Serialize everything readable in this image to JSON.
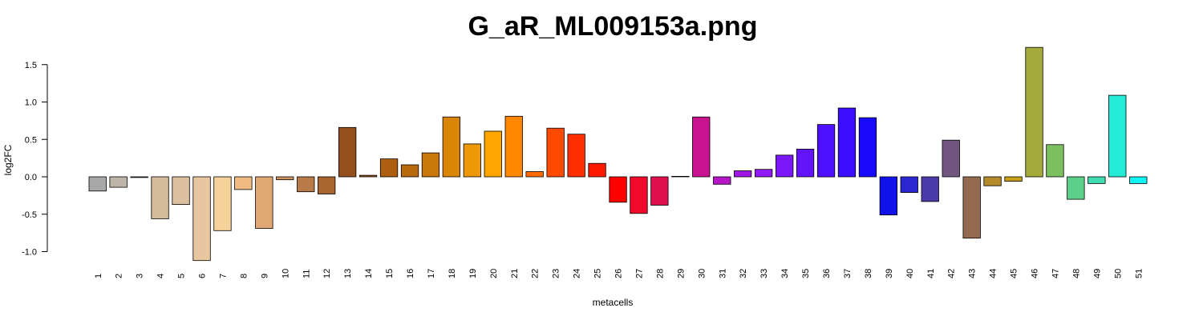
{
  "chart_data": {
    "type": "bar",
    "title": "G_aR_ML009153a.png",
    "xlabel": "metacells",
    "ylabel": "log2FC",
    "ylim": [
      -1.12,
      1.72
    ],
    "yticks": [
      -1.0,
      -0.5,
      0.0,
      0.5,
      1.0,
      1.5
    ],
    "ytick_labels": [
      "-1.0",
      "-0.5",
      "0.0",
      "0.5",
      "1.0",
      "1.5"
    ],
    "grid": false,
    "categories": [
      "1",
      "2",
      "3",
      "4",
      "5",
      "6",
      "7",
      "8",
      "9",
      "10",
      "11",
      "12",
      "13",
      "14",
      "15",
      "16",
      "17",
      "18",
      "19",
      "20",
      "21",
      "22",
      "23",
      "24",
      "25",
      "26",
      "27",
      "28",
      "29",
      "30",
      "31",
      "32",
      "33",
      "34",
      "35",
      "36",
      "37",
      "38",
      "39",
      "40",
      "41",
      "42",
      "43",
      "44",
      "45",
      "46",
      "47",
      "48",
      "49",
      "50",
      "51"
    ],
    "values": [
      -0.19,
      -0.14,
      -0.01,
      -0.56,
      -0.37,
      -1.12,
      -0.72,
      -0.17,
      -0.69,
      -0.04,
      -0.2,
      -0.23,
      0.66,
      0.02,
      0.24,
      0.16,
      0.32,
      0.8,
      0.44,
      0.61,
      0.81,
      0.07,
      0.65,
      0.57,
      0.18,
      -0.34,
      -0.49,
      -0.38,
      0.0,
      0.8,
      -0.1,
      0.08,
      0.1,
      0.29,
      0.37,
      0.7,
      0.92,
      0.79,
      -0.51,
      -0.21,
      -0.33,
      0.49,
      -0.82,
      -0.12,
      -0.06,
      1.73,
      0.43,
      -0.3,
      -0.09,
      1.09,
      -0.09
    ],
    "colors": [
      "#a8a8a8",
      "#bdb5a8",
      "#cfc3ad",
      "#d4bb9b",
      "#dcc0a0",
      "#e8c7a0",
      "#f6d29b",
      "#f0bc84",
      "#e0a872",
      "#cf9360",
      "#b87a48",
      "#a8652d",
      "#944f1c",
      "#9a5618",
      "#ad5e0e",
      "#b8690c",
      "#c87808",
      "#d98606",
      "#ee9805",
      "#ffa500",
      "#ff8800",
      "#ff6a00",
      "#ff4a00",
      "#ff2e00",
      "#ff1800",
      "#ff0000",
      "#f20a2c",
      "#e0104e",
      "#d01070",
      "#c8138e",
      "#b615c8",
      "#a117e6",
      "#9218f5",
      "#7b18f8",
      "#6414fa",
      "#4e10fc",
      "#3a0efc",
      "#1a0afc",
      "#1212ea",
      "#2a26d0",
      "#4a3ca8",
      "#735680",
      "#956b4f",
      "#b48a2a",
      "#c8a018",
      "#a4aa3c",
      "#7cbf5e",
      "#5ccf8a",
      "#3edcb0",
      "#22ecd8",
      "#10f4f4"
    ]
  }
}
